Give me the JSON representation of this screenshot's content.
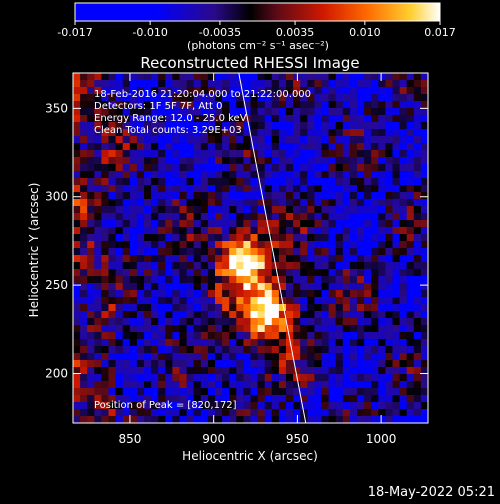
{
  "colorbar": {
    "tick_labels": [
      "-0.017",
      "-0.010",
      "-0.0035",
      "0.0035",
      "0.010",
      "0.017"
    ],
    "tick_values": [
      -0.017,
      -0.01,
      -0.0035,
      0.0035,
      0.01,
      0.017
    ],
    "range": [
      -0.017,
      0.017
    ],
    "units_label": "(photons cm⁻² s⁻¹ asec⁻²)"
  },
  "plot": {
    "title": "Reconstructed RHESSI Image",
    "xlabel": "Heliocentric X (arcsec)",
    "ylabel": "Heliocentric Y (arcsec)",
    "x_ticks": [
      "850",
      "900",
      "950",
      "1000"
    ],
    "y_ticks": [
      "200",
      "250",
      "300",
      "350"
    ],
    "x_tick_values": [
      850,
      900,
      950,
      1000
    ],
    "y_tick_values": [
      200,
      250,
      300,
      350
    ],
    "xlim": [
      816,
      1028
    ],
    "ylim": [
      172,
      370
    ],
    "annotations": [
      "18-Feb-2016 21:20:04.000 to 21:22:00.000",
      "Detectors: 1F 5F 7F, Att 0",
      "Energy Range: 12.0 - 25.0 keV",
      "Clean   Total counts: 3.29E+03"
    ],
    "peak_label": "Position of Peak = [820,172]",
    "peak_position": [
      820,
      172
    ],
    "limb_line_points": [
      [
        915,
        370
      ],
      [
        955,
        172
      ]
    ],
    "sources": [
      {
        "x": 918,
        "y": 265,
        "intensity": 0.017
      },
      {
        "x": 933,
        "y": 233,
        "intensity": 0.016
      }
    ]
  },
  "footer": {
    "timestamp": "18-May-2022 05:21"
  },
  "colors": {
    "background": "#000000",
    "text": "#ffffff",
    "limb": "#ffffff"
  }
}
